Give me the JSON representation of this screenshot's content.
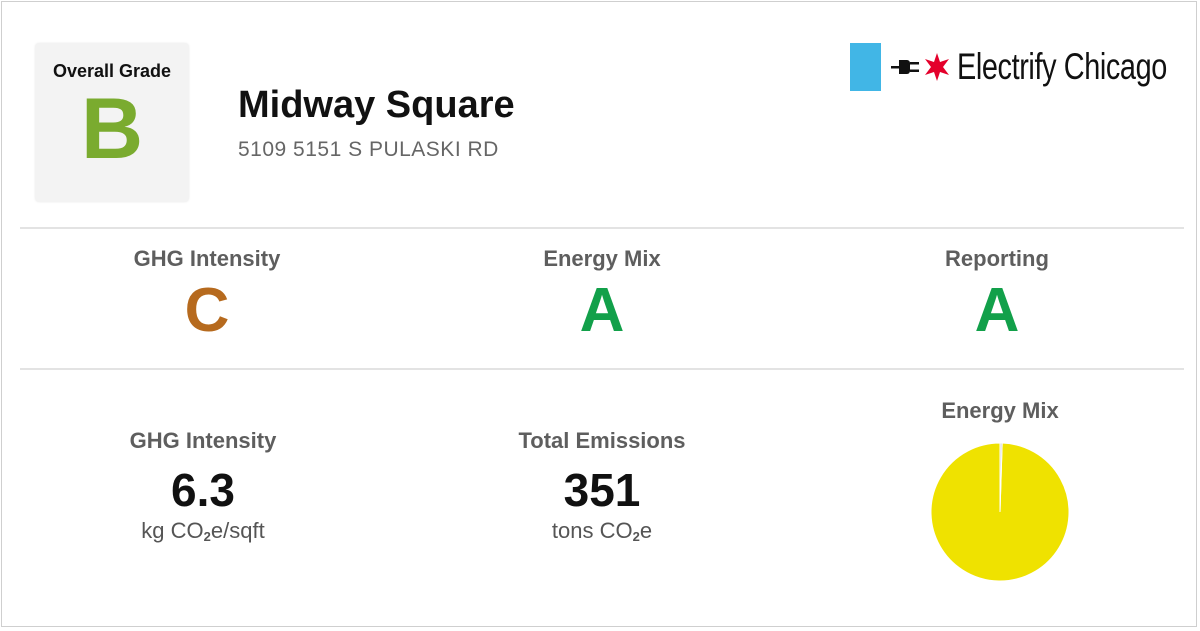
{
  "header": {
    "overall_grade_label": "Overall Grade",
    "overall_grade": "B",
    "overall_grade_color": "#7aab2f",
    "building_name": "Midway Square",
    "address": "5109 5151 S PULASKI RD"
  },
  "logo": {
    "text": "Electrify Chicago",
    "block_color": "#41b6e6",
    "star_color": "#e4002b",
    "icons": [
      "plug-icon",
      "star-icon"
    ]
  },
  "grades": [
    {
      "label": "GHG Intensity",
      "grade": "C",
      "color": "#b66a1e"
    },
    {
      "label": "Energy Mix",
      "grade": "A",
      "color": "#12a04a"
    },
    {
      "label": "Reporting",
      "grade": "A",
      "color": "#12a04a"
    }
  ],
  "metrics": {
    "ghg_intensity": {
      "label": "GHG Intensity",
      "value": "6.3",
      "unit_prefix": "kg CO",
      "unit_sub": "2",
      "unit_suffix": "e/sqft"
    },
    "total_emissions": {
      "label": "Total Emissions",
      "value": "351",
      "unit_prefix": "tons CO",
      "unit_sub": "2",
      "unit_suffix": "e"
    }
  },
  "chart_data": {
    "type": "pie",
    "title": "Energy Mix",
    "slices": [
      {
        "value": 0.995,
        "color": "#efe200"
      },
      {
        "value": 0.005,
        "color": "#d7d7d7"
      }
    ]
  }
}
